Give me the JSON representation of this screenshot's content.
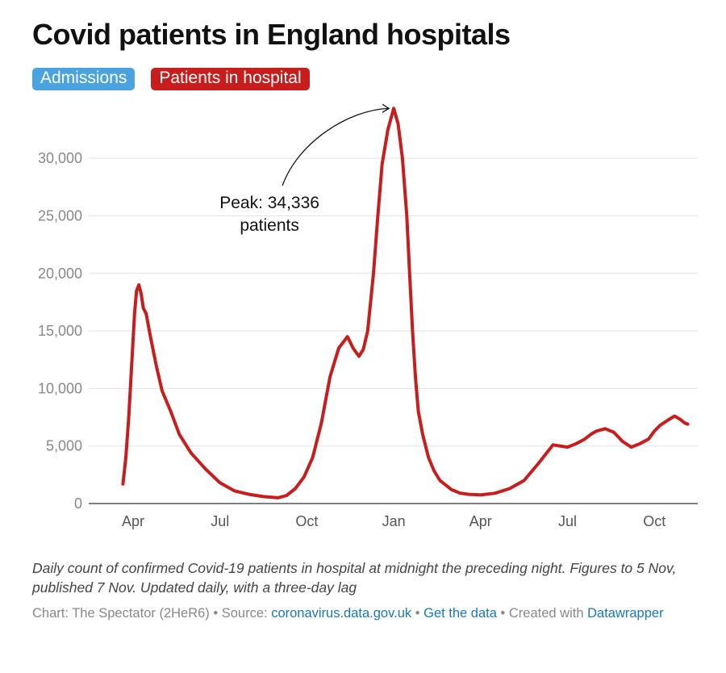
{
  "header": {
    "title": "Covid patients in England hospitals",
    "toggles": [
      {
        "label": "Admissions",
        "color": "#4aa3df"
      },
      {
        "label": "Patients in hospital",
        "color": "#c71e1d"
      }
    ]
  },
  "chart_data": {
    "type": "line",
    "title": "Covid patients in England hospitals",
    "xlabel": "",
    "ylabel": "",
    "ylim": [
      0,
      34500
    ],
    "yticks": [
      0,
      5000,
      10000,
      15000,
      20000,
      25000,
      30000
    ],
    "ytick_labels": [
      "0",
      "5,000",
      "10,000",
      "15,000",
      "20,000",
      "25,000",
      "30,000"
    ],
    "xticks": [
      {
        "label": "Apr",
        "month": 3
      },
      {
        "label": "Jul",
        "month": 6
      },
      {
        "label": "Oct",
        "month": 9
      },
      {
        "label": "Jan",
        "month": 12
      },
      {
        "label": "Apr",
        "month": 15
      },
      {
        "label": "Jul",
        "month": 18
      },
      {
        "label": "Oct",
        "month": 21
      }
    ],
    "series": [
      {
        "name": "Patients in hospital",
        "color": "#c71e1d",
        "x_months": [
          2.65,
          2.75,
          2.85,
          2.95,
          3.05,
          3.12,
          3.2,
          3.28,
          3.35,
          3.45,
          3.6,
          3.8,
          4.0,
          4.3,
          4.6,
          5.0,
          5.5,
          6.0,
          6.5,
          7.0,
          7.5,
          8.0,
          8.3,
          8.6,
          8.9,
          9.2,
          9.5,
          9.8,
          10.1,
          10.4,
          10.6,
          10.8,
          10.95,
          11.1,
          11.2,
          11.3,
          11.45,
          11.6,
          11.8,
          12.0,
          12.15,
          12.3,
          12.45,
          12.55,
          12.65,
          12.75,
          12.85,
          13.0,
          13.2,
          13.4,
          13.6,
          13.8,
          14.0,
          14.3,
          14.6,
          15.0,
          15.5,
          16.0,
          16.5,
          17.0,
          17.5,
          18.0,
          18.3,
          18.6,
          18.8,
          19.0,
          19.3,
          19.6,
          19.9,
          20.2,
          20.5,
          20.8,
          21.0,
          21.2,
          21.5,
          21.7,
          21.9,
          22.05,
          22.15
        ],
        "values": [
          1700,
          4000,
          7500,
          12000,
          16500,
          18500,
          19000,
          18200,
          17000,
          16500,
          14500,
          12000,
          9800,
          8000,
          6000,
          4400,
          3000,
          1800,
          1100,
          800,
          600,
          500,
          700,
          1300,
          2300,
          4000,
          7000,
          11000,
          13500,
          14500,
          13500,
          12800,
          13400,
          15000,
          17500,
          20000,
          25000,
          29500,
          32500,
          34336,
          33000,
          30000,
          25000,
          20000,
          15000,
          11000,
          8000,
          6000,
          4000,
          2800,
          2000,
          1600,
          1200,
          900,
          800,
          750,
          900,
          1300,
          2000,
          3500,
          5100,
          4900,
          5200,
          5600,
          6000,
          6300,
          6500,
          6200,
          5400,
          4900,
          5200,
          5600,
          6300,
          6800,
          7300,
          7600,
          7300,
          7000,
          6900
        ]
      }
    ],
    "annotations": [
      {
        "line1": "Peak:  34,336",
        "line2": "patients",
        "value": 34336
      }
    ]
  },
  "footer": {
    "description": "Daily count of confirmed Covid-19 patients in hospital at midnight the preceding night. Figures to 5 Nov, published 7 Nov. Updated daily, with a three-day lag",
    "credit_prefix": "Chart: The Spectator (2HeR6) • Source: ",
    "source_link": "coronavirus.data.gov.uk",
    "separator": " • ",
    "data_link": "Get the data",
    "created_with": " • Created with ",
    "tool_link": "Datawrapper"
  }
}
